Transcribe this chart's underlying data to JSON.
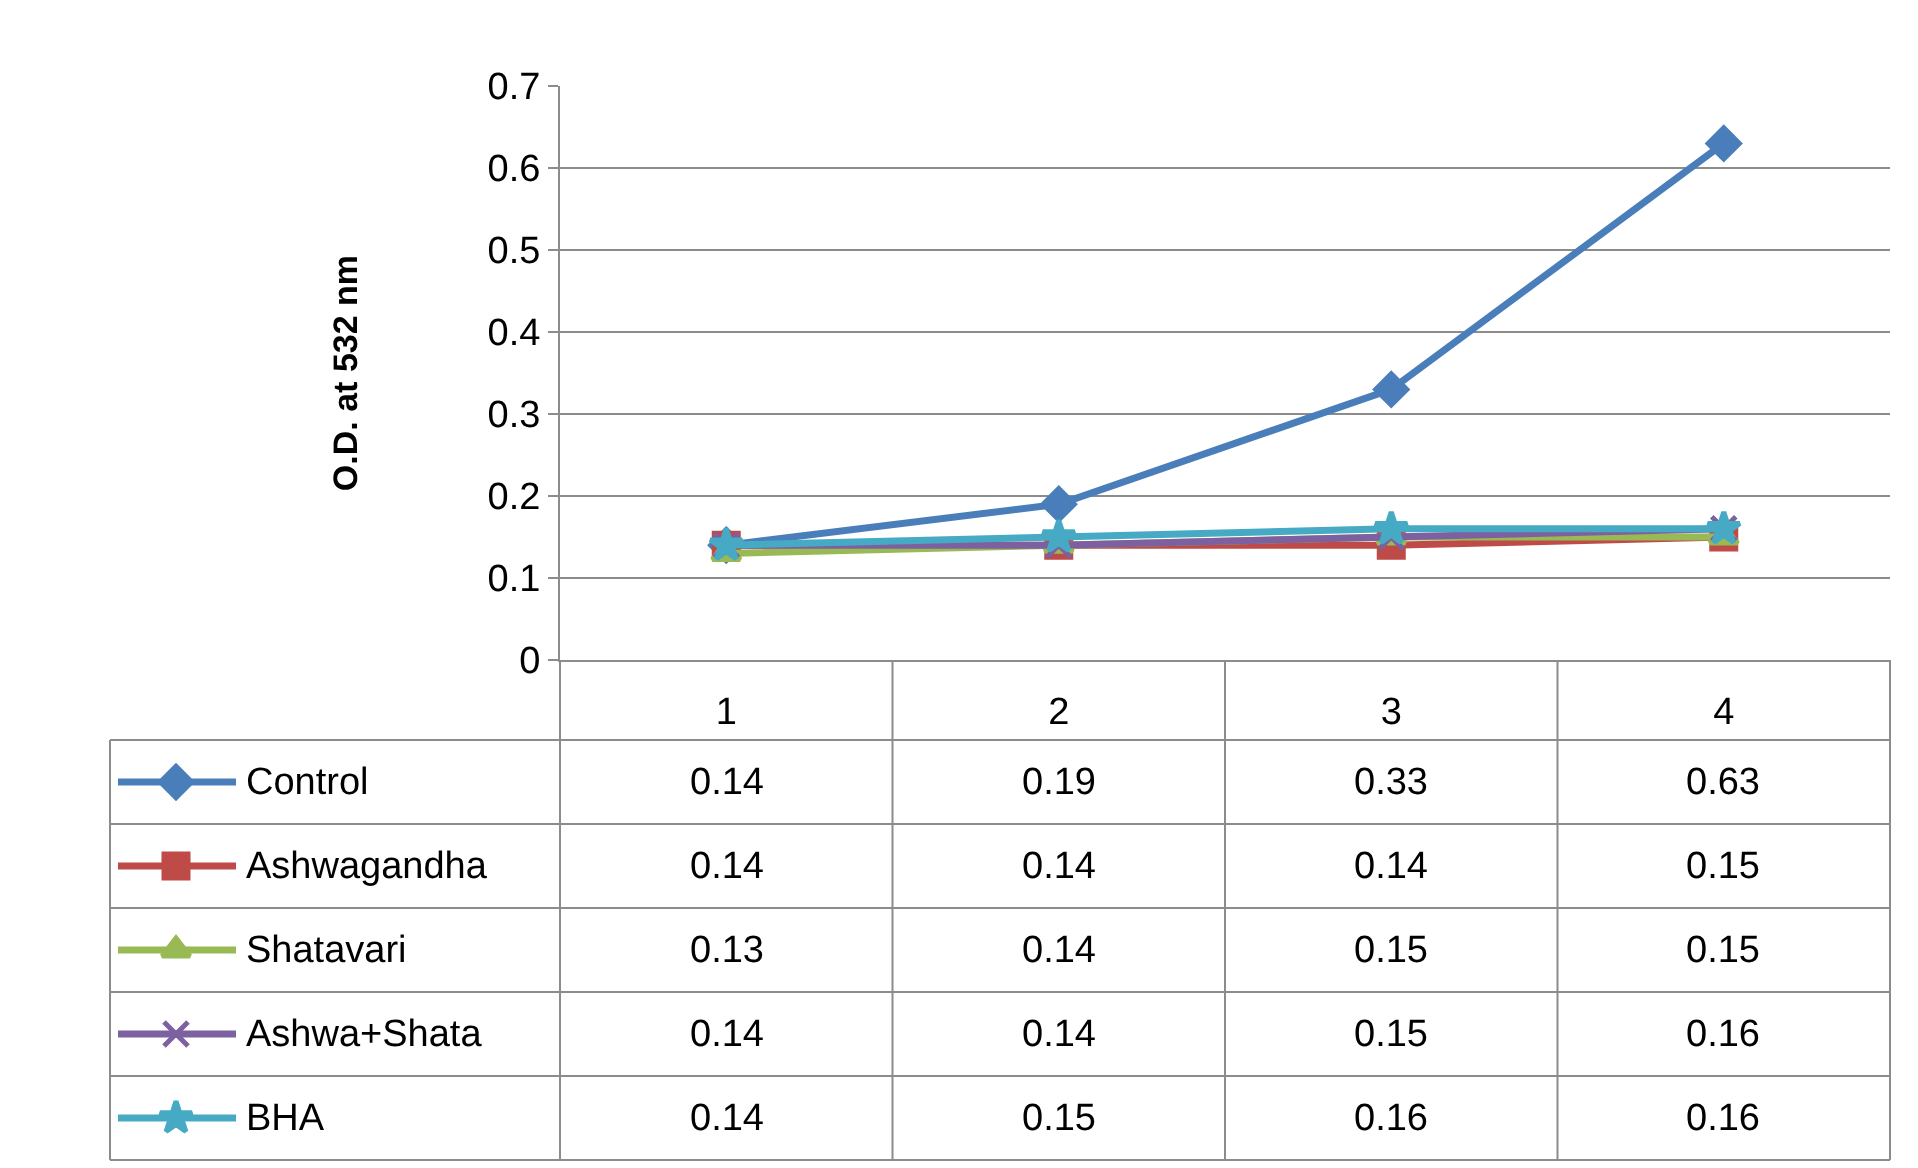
{
  "chart_data": {
    "type": "line",
    "ylabel": "O.D. at 532 nm",
    "categories": [
      "1",
      "2",
      "3",
      "4"
    ],
    "series": [
      {
        "name": "Control",
        "color": "#4a7ebb",
        "marker": "diamond",
        "values": [
          0.14,
          0.19,
          0.33,
          0.63
        ]
      },
      {
        "name": "Ashwagandha",
        "color": "#be4b48",
        "marker": "square",
        "values": [
          0.14,
          0.14,
          0.14,
          0.15
        ]
      },
      {
        "name": "Shatavari",
        "color": "#98b954",
        "marker": "triangle",
        "values": [
          0.13,
          0.14,
          0.15,
          0.15
        ]
      },
      {
        "name": "Ashwa+Shata",
        "color": "#7d60a0",
        "marker": "cross",
        "values": [
          0.14,
          0.14,
          0.15,
          0.16
        ]
      },
      {
        "name": "BHA",
        "color": "#46aac5",
        "marker": "star",
        "values": [
          0.14,
          0.15,
          0.16,
          0.16
        ]
      }
    ],
    "ylim": [
      0,
      0.7
    ],
    "yticks": [
      0,
      0.1,
      0.2,
      0.3,
      0.4,
      0.5,
      0.6,
      0.7
    ],
    "grid": "y",
    "legend": "bottom left",
    "data_labels": true,
    "line_style": "solid"
  }
}
